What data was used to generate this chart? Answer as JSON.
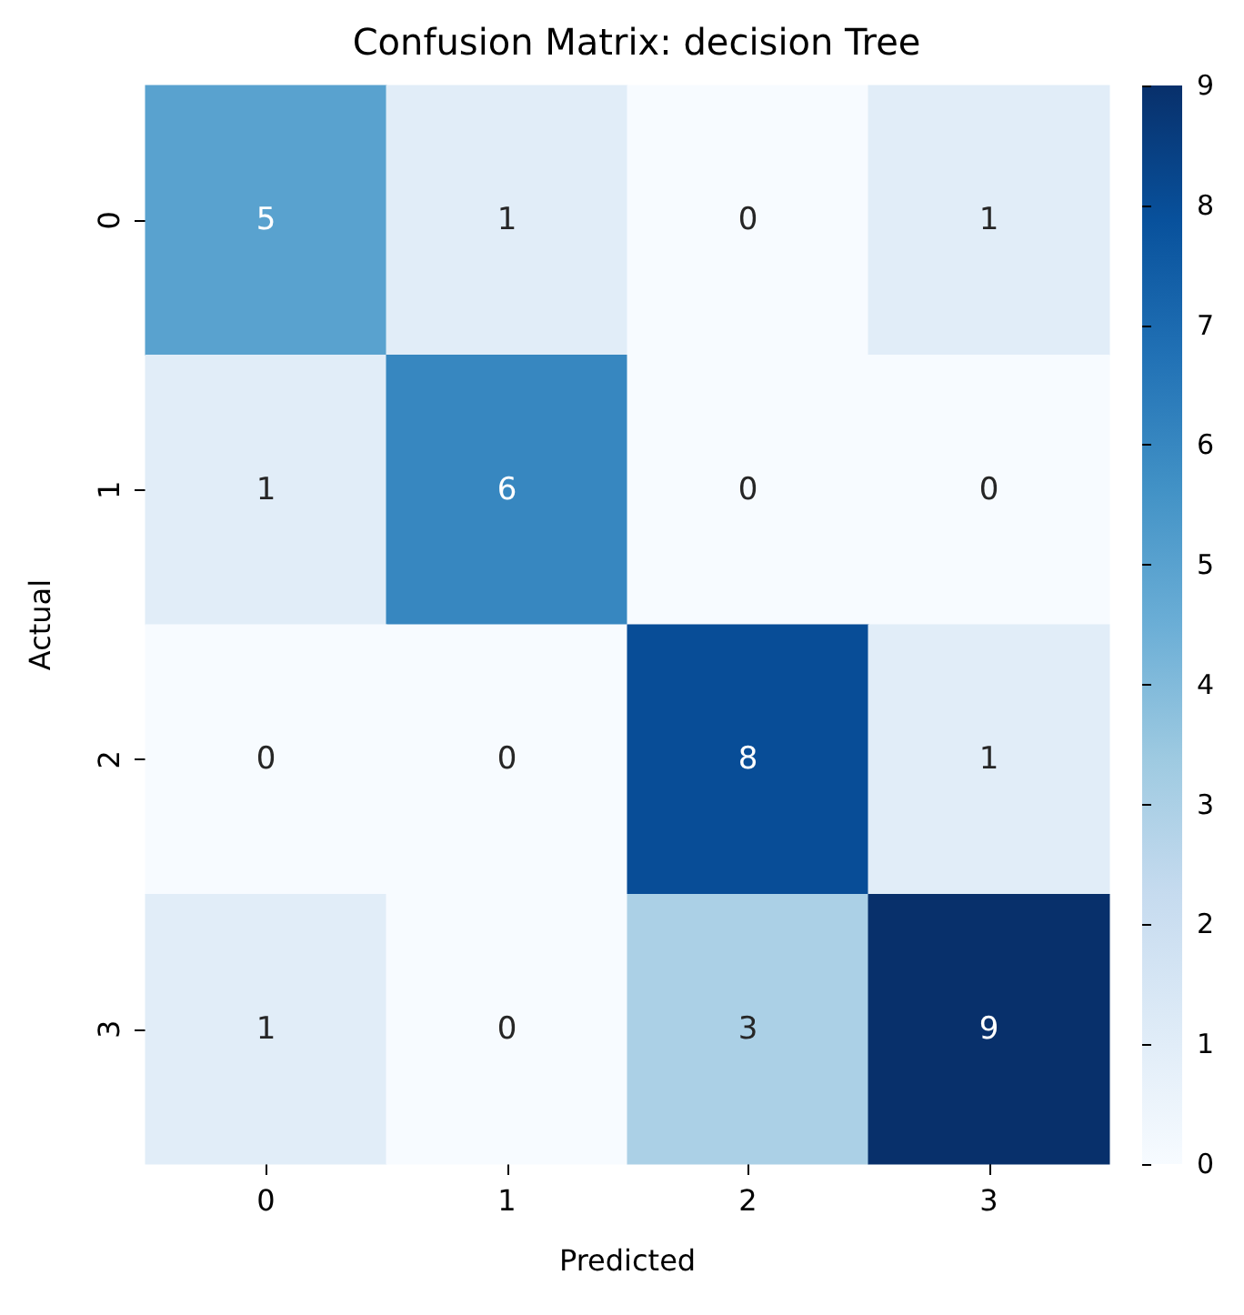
{
  "chart_data": {
    "type": "heatmap",
    "title": "Confusion Matrix: decision Tree",
    "xlabel": "Predicted",
    "ylabel": "Actual",
    "categories": [
      "0",
      "1",
      "2",
      "3"
    ],
    "y_categories": [
      "0",
      "1",
      "2",
      "3"
    ],
    "cells": [
      [
        5,
        1,
        0,
        1
      ],
      [
        1,
        6,
        0,
        0
      ],
      [
        0,
        0,
        8,
        1
      ],
      [
        1,
        0,
        3,
        9
      ]
    ],
    "clim": [
      0,
      9
    ],
    "cticks": [
      0,
      1,
      2,
      3,
      4,
      5,
      6,
      7,
      8,
      9
    ],
    "data_labels": true
  }
}
